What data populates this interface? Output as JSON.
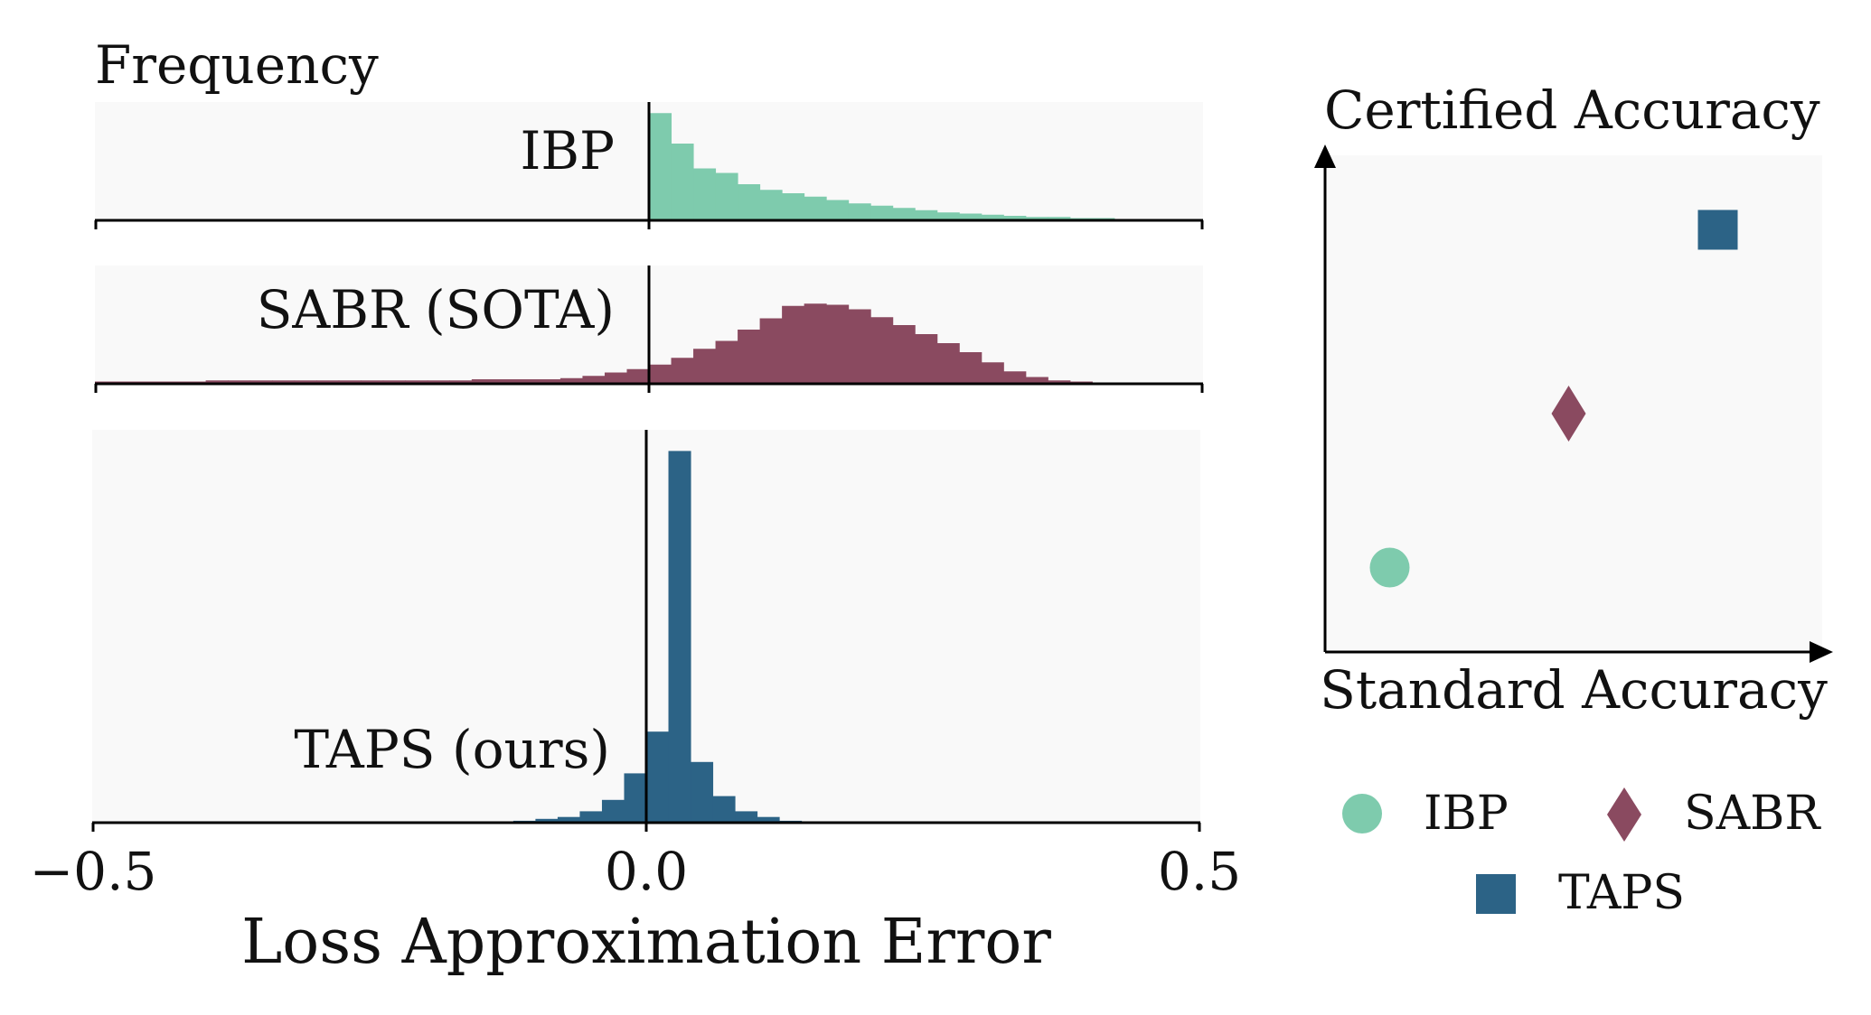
{
  "colors": {
    "ibp": "#7ecbad",
    "sabr": "#8a4a60",
    "taps": "#2c6386",
    "panel_bg": "#f9f9f9",
    "axis": "#000000"
  },
  "chart_data": [
    {
      "type": "histogram",
      "title": "Frequency",
      "xlabel": "Loss Approximation Error",
      "xlim": [
        -0.5,
        0.5
      ],
      "xticks": [
        -0.5,
        0.0,
        0.5
      ],
      "xtick_labels": [
        "−0.5",
        "0.0",
        "0.5"
      ],
      "bin_width": 0.02,
      "zero_line": 0.0,
      "panels": [
        {
          "name": "IBP",
          "label": "IBP",
          "color_key": "ibp",
          "bin_start": 0.0,
          "ymax": 1.0,
          "values": [
            0.95,
            0.68,
            0.46,
            0.42,
            0.32,
            0.27,
            0.24,
            0.21,
            0.18,
            0.15,
            0.13,
            0.11,
            0.09,
            0.07,
            0.06,
            0.05,
            0.04,
            0.03,
            0.03,
            0.02,
            0.02,
            0.01
          ]
        },
        {
          "name": "SABR",
          "label": "SABR (SOTA)",
          "color_key": "sabr",
          "bin_start": -0.5,
          "ymax": 1.0,
          "values": [
            0.02,
            0.02,
            0.02,
            0.02,
            0.02,
            0.03,
            0.03,
            0.03,
            0.03,
            0.03,
            0.03,
            0.03,
            0.03,
            0.03,
            0.03,
            0.03,
            0.03,
            0.04,
            0.04,
            0.04,
            0.04,
            0.05,
            0.07,
            0.1,
            0.13,
            0.17,
            0.23,
            0.31,
            0.38,
            0.48,
            0.58,
            0.69,
            0.71,
            0.7,
            0.66,
            0.59,
            0.52,
            0.44,
            0.36,
            0.28,
            0.19,
            0.11,
            0.06,
            0.03,
            0.02,
            0.01,
            0.01,
            0.01
          ]
        },
        {
          "name": "TAPS",
          "label": "TAPS (ours)",
          "color_key": "taps",
          "bin_start": -0.12,
          "ymax": 1.0,
          "values": [
            0.005,
            0.01,
            0.015,
            0.03,
            0.06,
            0.13,
            0.24,
            0.98,
            0.16,
            0.07,
            0.03,
            0.015,
            0.005
          ]
        }
      ]
    },
    {
      "type": "scatter",
      "title": "Certified Accuracy",
      "xlabel": "Standard Accuracy",
      "ylabel": "Certified Accuracy",
      "xlim": [
        0,
        1
      ],
      "ylim": [
        0,
        1
      ],
      "series": [
        {
          "name": "IBP",
          "marker": "circle",
          "color_key": "ibp",
          "x": 0.13,
          "y": 0.17
        },
        {
          "name": "SABR",
          "marker": "diamond",
          "color_key": "sabr",
          "x": 0.49,
          "y": 0.48
        },
        {
          "name": "TAPS",
          "marker": "square",
          "color_key": "taps",
          "x": 0.79,
          "y": 0.85
        }
      ],
      "legend": {
        "placement": "bottom",
        "entries": [
          {
            "label": "IBP",
            "marker": "circle",
            "color_key": "ibp"
          },
          {
            "label": "SABR",
            "marker": "diamond",
            "color_key": "sabr"
          },
          {
            "label": "TAPS",
            "marker": "square",
            "color_key": "taps"
          }
        ]
      }
    }
  ]
}
